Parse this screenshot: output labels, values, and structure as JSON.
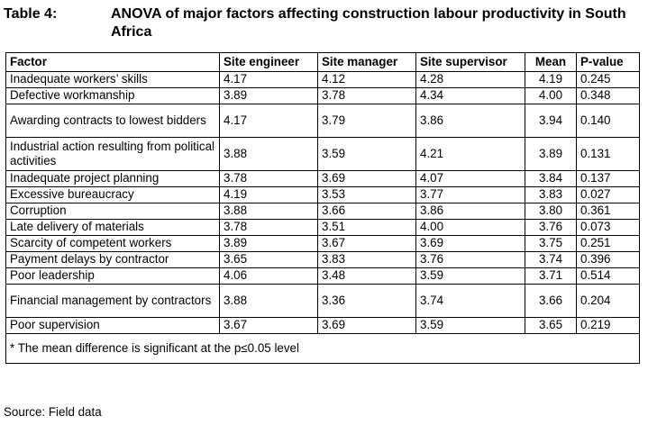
{
  "caption": {
    "label": "Table 4:",
    "title": "ANOVA of major factors affecting construction labour productivity in South Africa"
  },
  "table": {
    "headers": [
      "Factor",
      "Site engineer",
      "Site manager",
      "Site supervisor",
      "Mean",
      "P-value"
    ],
    "rows": [
      {
        "factor": "Inadequate workers’ skills",
        "engineer": "4.17",
        "manager": "4.12",
        "supervisor": "4.28",
        "mean": "4.19",
        "p": "0.245"
      },
      {
        "factor": "Defective workmanship",
        "engineer": "3.89",
        "manager": "3.78",
        "supervisor": "4.34",
        "mean": "4.00",
        "p": "0.348"
      },
      {
        "factor": "Awarding contracts to lowest bidders",
        "engineer": "4.17",
        "manager": "3.79",
        "supervisor": "3.86",
        "mean": "3.94",
        "p": "0.140"
      },
      {
        "factor": "Industrial action resulting from political activities",
        "engineer": "3.88",
        "manager": "3.59",
        "supervisor": "4.21",
        "mean": "3.89",
        "p": "0.131"
      },
      {
        "factor": "Inadequate project planning",
        "engineer": "3.78",
        "manager": "3.69",
        "supervisor": "4.07",
        "mean": "3.84",
        "p": "0.137"
      },
      {
        "factor": "Excessive bureaucracy",
        "engineer": "4.19",
        "manager": "3.53",
        "supervisor": "3.77",
        "mean": "3.83",
        "p": "0.027"
      },
      {
        "factor": "Corruption",
        "engineer": "3.88",
        "manager": "3.66",
        "supervisor": "3.86",
        "mean": "3.80",
        "p": "0.361"
      },
      {
        "factor": "Late delivery of materials",
        "engineer": "3.78",
        "manager": "3.51",
        "supervisor": "4.00",
        "mean": "3.76",
        "p": "0.073"
      },
      {
        "factor": "Scarcity of competent workers",
        "engineer": "3.89",
        "manager": "3.67",
        "supervisor": "3.69",
        "mean": "3.75",
        "p": "0.251"
      },
      {
        "factor": "Payment delays by contractor",
        "engineer": "3.65",
        "manager": "3.83",
        "supervisor": "3.76",
        "mean": "3.74",
        "p": "0.396"
      },
      {
        "factor": "Poor leadership",
        "engineer": "4.06",
        "manager": "3.48",
        "supervisor": "3.59",
        "mean": "3.71",
        "p": "0.514"
      },
      {
        "factor": "Financial management by contractors",
        "engineer": "3.88",
        "manager": "3.36",
        "supervisor": "3.74",
        "mean": "3.66",
        "p": "0.204"
      },
      {
        "factor": "Poor supervision",
        "engineer": "3.67",
        "manager": "3.69",
        "supervisor": "3.59",
        "mean": "3.65",
        "p": "0.219"
      }
    ],
    "note": "* The mean difference is significant at the p≤0.05 level"
  },
  "source": "Source: Field data"
}
